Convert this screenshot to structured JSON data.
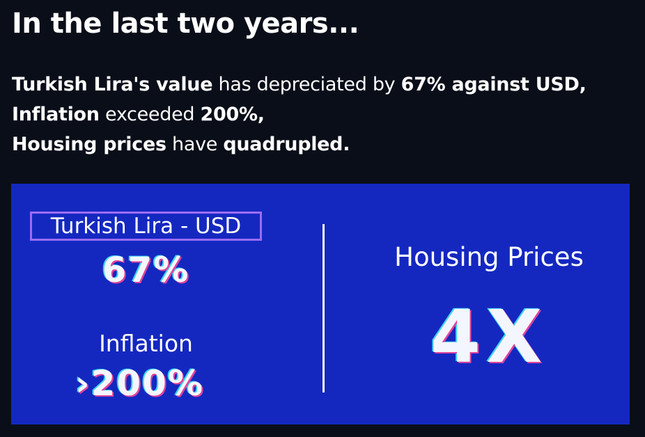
{
  "headline": "In the last two years...",
  "summary": {
    "line1": {
      "subject": "Turkish Lira's value",
      "verb": " has depreciated by ",
      "value": "67% against USD,"
    },
    "line2": {
      "subject": "Inflation",
      "verb": " exceeded ",
      "value": "200%,"
    },
    "line3": {
      "subject": "Housing prices",
      "verb": " have ",
      "value": "quadrupled."
    }
  },
  "panel": {
    "lira": {
      "label": "Turkish Lira - USD",
      "value": "67%"
    },
    "inflation": {
      "label": "Inflation",
      "value": "›200%"
    },
    "housing": {
      "label": "Housing Prices",
      "value": "4X"
    },
    "colors": {
      "background": "#1428c0",
      "label_border": "#9c6cf2",
      "page_background": "#0a0e19"
    }
  }
}
